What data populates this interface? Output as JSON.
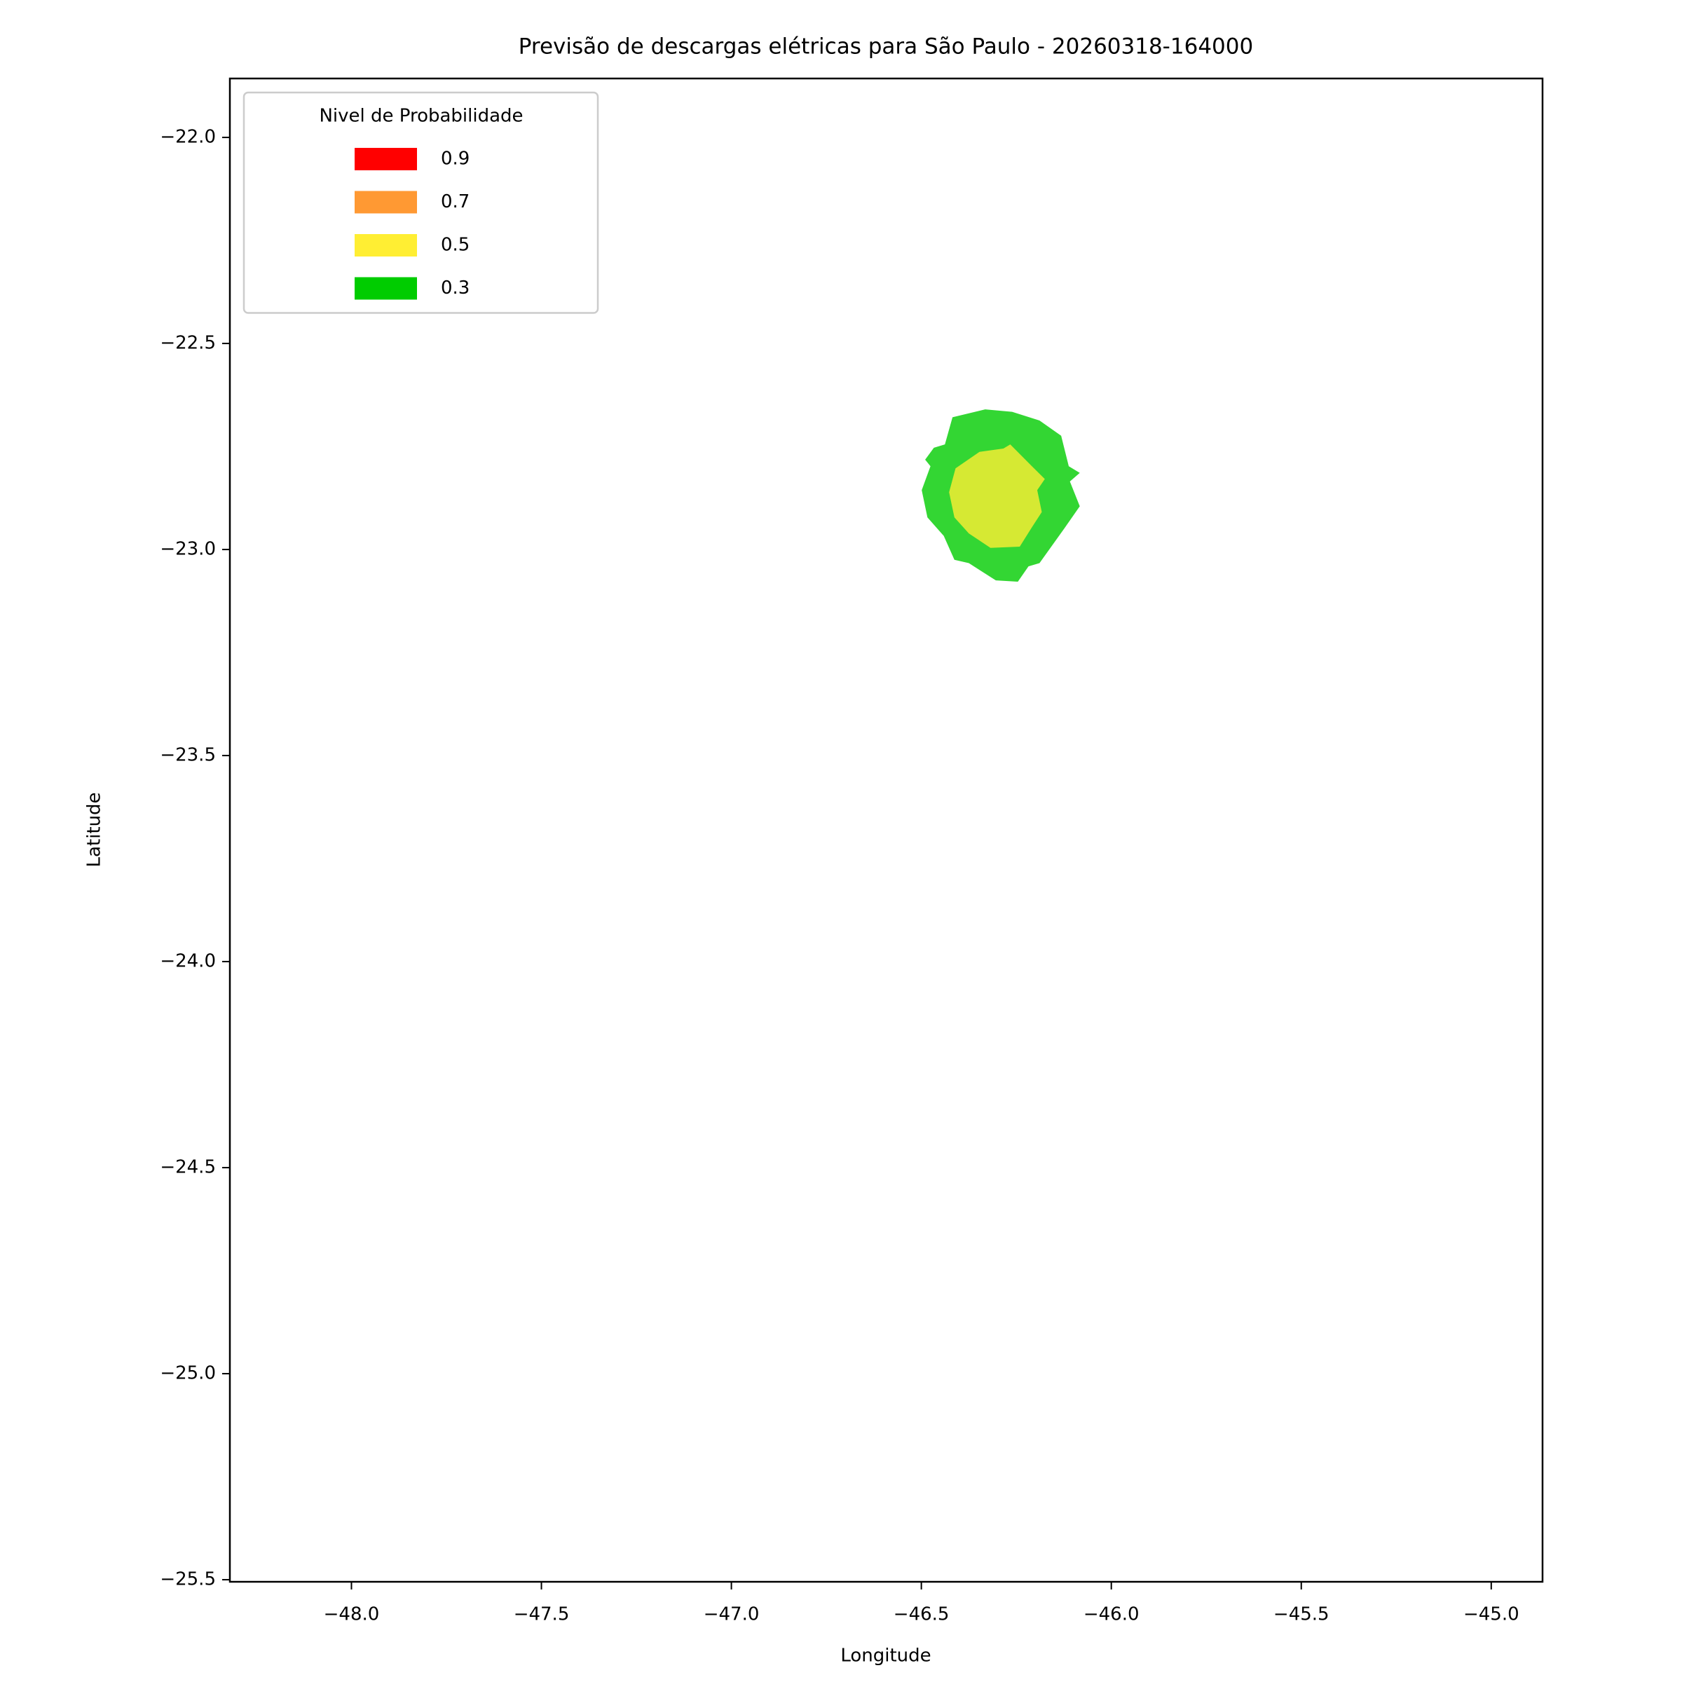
{
  "chart_data": {
    "type": "contour",
    "title": "Previsão de descargas elétricas para São Paulo - 20260318-164000",
    "xlabel": "Longitude",
    "ylabel": "Latitude",
    "xlim": [
      -48.32,
      -44.865
    ],
    "ylim": [
      -25.505,
      -21.857
    ],
    "xticks": [
      {
        "value": -48.0,
        "label": "−48.0"
      },
      {
        "value": -47.5,
        "label": "−47.5"
      },
      {
        "value": -47.0,
        "label": "−47.0"
      },
      {
        "value": -46.5,
        "label": "−46.5"
      },
      {
        "value": -46.0,
        "label": "−46.0"
      },
      {
        "value": -45.5,
        "label": "−45.5"
      },
      {
        "value": -45.0,
        "label": "−45.0"
      }
    ],
    "yticks": [
      {
        "value": -22.0,
        "label": "−22.0"
      },
      {
        "value": -22.5,
        "label": "−22.5"
      },
      {
        "value": -23.0,
        "label": "−23.0"
      },
      {
        "value": -23.5,
        "label": "−23.5"
      },
      {
        "value": -24.0,
        "label": "−24.0"
      },
      {
        "value": -24.5,
        "label": "−24.5"
      },
      {
        "value": -25.0,
        "label": "−25.0"
      },
      {
        "value": -25.5,
        "label": "−25.5"
      }
    ],
    "alpha": 0.8,
    "legend": {
      "title": "Nivel de Probabilidade",
      "loc": "upper left"
    },
    "series": [
      {
        "name": "0.9",
        "color": "#ff0000",
        "polygons": []
      },
      {
        "name": "0.7",
        "color": "#ff9933",
        "polygons": []
      },
      {
        "name": "0.5",
        "color": "#ffee33",
        "polygons": [
          {
            "x": [
              -46.41,
              -46.347,
              -46.284,
              -46.266,
              -46.209,
              -46.175,
              -46.195,
              -46.183,
              -46.209,
              -46.241,
              -46.318,
              -46.375,
              -46.413,
              -46.427
            ],
            "y": [
              -22.803,
              -22.763,
              -22.755,
              -22.745,
              -22.798,
              -22.829,
              -22.856,
              -22.909,
              -22.946,
              -22.993,
              -22.996,
              -22.961,
              -22.922,
              -22.861
            ]
          }
        ]
      },
      {
        "name": "0.3",
        "color": "#00cc00",
        "polygons": [
          {
            "x": [
              -46.418,
              -46.332,
              -46.261,
              -46.189,
              -46.132,
              -46.112,
              -46.083,
              -46.109,
              -46.083,
              -46.123,
              -46.189,
              -46.218,
              -46.246,
              -46.304,
              -46.375,
              -46.413,
              -46.441,
              -46.484,
              -46.499,
              -46.476,
              -46.49,
              -46.467,
              -46.438
            ],
            "y": [
              -22.679,
              -22.66,
              -22.666,
              -22.687,
              -22.724,
              -22.798,
              -22.814,
              -22.835,
              -22.895,
              -22.948,
              -23.033,
              -23.041,
              -23.078,
              -23.075,
              -23.033,
              -23.025,
              -22.967,
              -22.922,
              -22.856,
              -22.798,
              -22.782,
              -22.753,
              -22.745
            ]
          }
        ]
      }
    ]
  }
}
